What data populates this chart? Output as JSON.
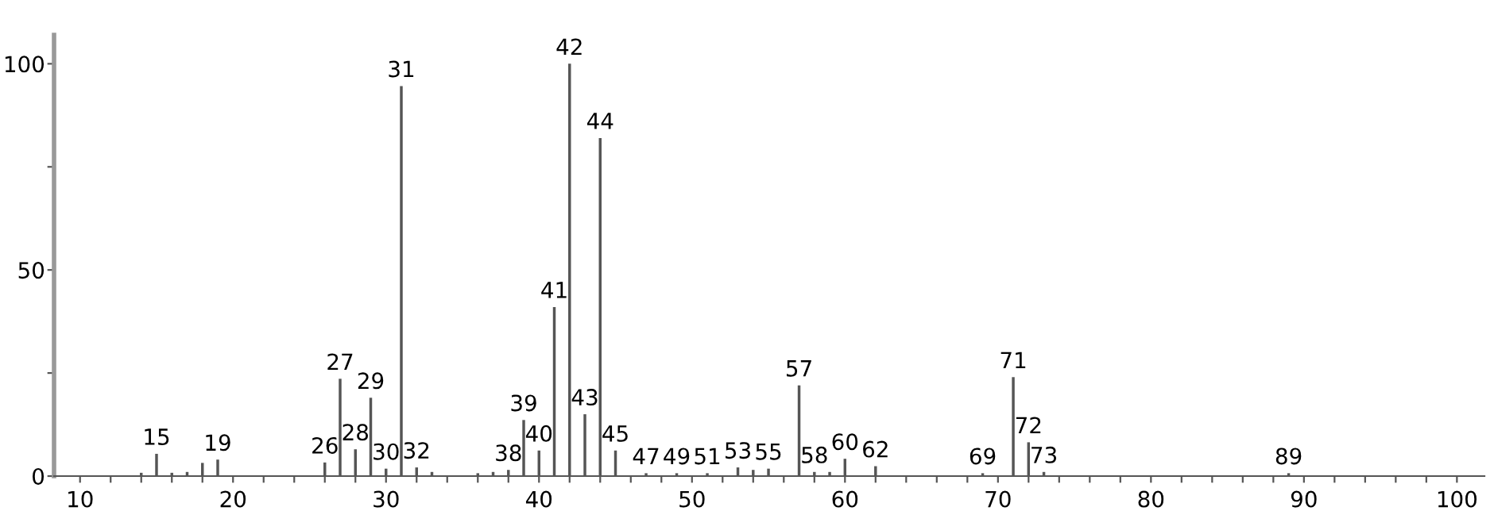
{
  "chart_data": {
    "type": "bar",
    "x": [
      14,
      15,
      16,
      17,
      18,
      19,
      26,
      27,
      28,
      29,
      30,
      31,
      32,
      33,
      36,
      37,
      38,
      39,
      40,
      41,
      42,
      43,
      44,
      45,
      47,
      49,
      51,
      53,
      54,
      55,
      57,
      58,
      59,
      60,
      62,
      69,
      71,
      72,
      73,
      89
    ],
    "values": [
      0.8,
      5.4,
      0.8,
      1,
      3.2,
      4,
      3.3,
      23.6,
      6.5,
      19,
      1.8,
      94.6,
      2.1,
      1,
      0.7,
      1,
      1.5,
      13.6,
      6.2,
      41,
      100,
      15,
      82,
      6.2,
      0.7,
      0.7,
      0.7,
      2.1,
      1.5,
      1.8,
      22,
      1,
      1,
      4.2,
      2.4,
      0.7,
      24,
      8.2,
      1,
      0.7
    ],
    "color": "#555555",
    "xlim": [
      8.3,
      101.8
    ],
    "xticks": [
      10,
      {
        "value": 12,
        "label": null
      },
      {
        "value": 14,
        "label": null
      },
      {
        "value": 16,
        "label": null
      },
      {
        "value": 18,
        "label": null
      },
      20,
      {
        "value": 22,
        "label": null
      },
      {
        "value": 24,
        "label": null
      },
      {
        "value": 26,
        "label": null
      },
      {
        "value": 28,
        "label": null
      },
      30,
      {
        "value": 32,
        "label": null
      },
      {
        "value": 34,
        "label": null
      },
      {
        "value": 36,
        "label": null
      },
      {
        "value": 38,
        "label": null
      },
      40,
      {
        "value": 42,
        "label": null
      },
      {
        "value": 44,
        "label": null
      },
      {
        "value": 46,
        "label": null
      },
      {
        "value": 48,
        "label": null
      },
      50,
      {
        "value": 52,
        "label": null
      },
      {
        "value": 54,
        "label": null
      },
      {
        "value": 56,
        "label": null
      },
      {
        "value": 58,
        "label": null
      },
      60,
      {
        "value": 62,
        "label": null
      },
      {
        "value": 64,
        "label": null
      },
      {
        "value": 66,
        "label": null
      },
      {
        "value": 68,
        "label": null
      },
      70,
      {
        "value": 72,
        "label": null
      },
      {
        "value": 74,
        "label": null
      },
      {
        "value": 76,
        "label": null
      },
      {
        "value": 78,
        "label": null
      },
      80,
      {
        "value": 82,
        "label": null
      },
      {
        "value": 84,
        "label": null
      },
      {
        "value": 86,
        "label": null
      },
      {
        "value": 88,
        "label": null
      },
      90,
      {
        "value": 92,
        "label": null
      },
      {
        "value": 94,
        "label": null
      },
      {
        "value": 96,
        "label": null
      },
      {
        "value": 98,
        "label": null
      },
      100
    ],
    "ylim": [
      0,
      107
    ],
    "yticks": [
      0,
      {
        "value": 25,
        "label": null
      },
      50,
      {
        "value": 75,
        "label": null
      },
      100
    ],
    "annotations": [
      {
        "text": "15",
        "x": 15,
        "y": 5.4
      },
      {
        "text": "19",
        "x": 19,
        "y": 4
      },
      {
        "text": "26",
        "x": 26,
        "y": 3.3
      },
      {
        "text": "27",
        "x": 27,
        "y": 23.6
      },
      {
        "text": "28",
        "x": 28,
        "y": 6.5
      },
      {
        "text": "29",
        "x": 29,
        "y": 19
      },
      {
        "text": "30",
        "x": 30,
        "y": 1.8
      },
      {
        "text": "31",
        "x": 31,
        "y": 94.6
      },
      {
        "text": "32",
        "x": 32,
        "y": 2.1
      },
      {
        "text": "38",
        "x": 38,
        "y": 1.5
      },
      {
        "text": "39",
        "x": 39,
        "y": 13.6
      },
      {
        "text": "40",
        "x": 40,
        "y": 6.2
      },
      {
        "text": "41",
        "x": 41,
        "y": 41
      },
      {
        "text": "42",
        "x": 42,
        "y": 100
      },
      {
        "text": "43",
        "x": 43,
        "y": 15
      },
      {
        "text": "44",
        "x": 44,
        "y": 82
      },
      {
        "text": "45",
        "x": 45,
        "y": 6.2
      },
      {
        "text": "47",
        "x": 47,
        "y": 0.7
      },
      {
        "text": "49",
        "x": 49,
        "y": 0.7
      },
      {
        "text": "51",
        "x": 51,
        "y": 0.7
      },
      {
        "text": "53",
        "x": 53,
        "y": 2.1
      },
      {
        "text": "55",
        "x": 55,
        "y": 1.8
      },
      {
        "text": "57",
        "x": 57,
        "y": 22
      },
      {
        "text": "58",
        "x": 58,
        "y": 1
      },
      {
        "text": "60",
        "x": 60,
        "y": 4.2
      },
      {
        "text": "62",
        "x": 62,
        "y": 2.4
      },
      {
        "text": "69",
        "x": 69,
        "y": 0.7
      },
      {
        "text": "71",
        "x": 71,
        "y": 24
      },
      {
        "text": "72",
        "x": 72,
        "y": 8.2
      },
      {
        "text": "73",
        "x": 73,
        "y": 1
      },
      {
        "text": "89",
        "x": 89,
        "y": 0.7
      }
    ],
    "grid": false
  }
}
